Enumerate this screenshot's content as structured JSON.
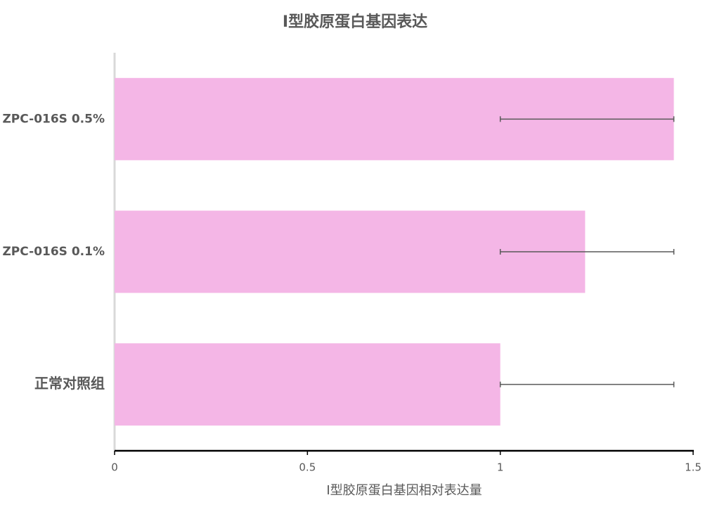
{
  "chart_data": {
    "type": "hbar",
    "title": "Ⅰ型胶原蛋白基因表达",
    "x_label": "Ⅰ型胶原蛋白基因相对表达量",
    "categories": [
      "正常对照组",
      "ZPC-016S 0.1%",
      "ZPC-016S 0.5%"
    ],
    "values": [
      1.0,
      1.22,
      1.45
    ],
    "errors": [
      [
        1.0,
        1.45
      ],
      [
        1.0,
        1.45
      ],
      [
        1.0,
        1.45
      ]
    ],
    "color": "#f4b6e6",
    "xlim": [
      0,
      1.5
    ],
    "xticks": [
      0,
      0.5,
      1,
      1.5
    ]
  }
}
